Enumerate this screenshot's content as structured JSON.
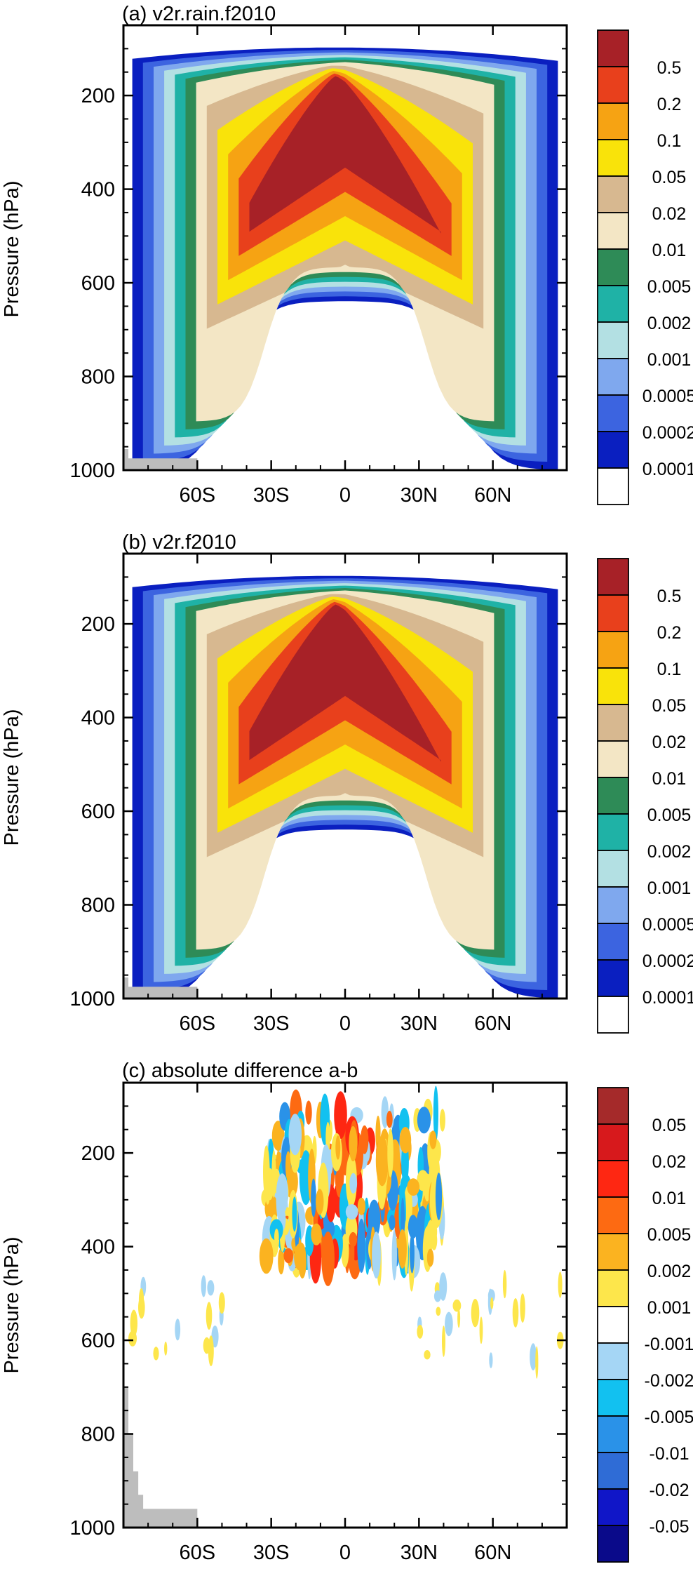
{
  "chart_data": [
    {
      "type": "heatmap",
      "title": "(a) v2r.rain.f2010",
      "xlabel": "",
      "ylabel": "Pressure (hPa)",
      "x_ticks": [
        "60S",
        "30S",
        "0",
        "30N",
        "60N"
      ],
      "x_tick_values": [
        -60,
        -30,
        0,
        30,
        60
      ],
      "xlim": [
        -90,
        90
      ],
      "y_ticks": [
        "200",
        "400",
        "600",
        "800",
        "1000"
      ],
      "y_tick_values": [
        200,
        400,
        600,
        800,
        1000
      ],
      "ylim": [
        1000,
        50
      ],
      "levels": [
        "0.5",
        "0.2",
        "0.1",
        "0.05",
        "0.02",
        "0.01",
        "0.005",
        "0.002",
        "0.001",
        "0.0005",
        "0.0002",
        "0.0001"
      ],
      "colors": [
        "#a72127",
        "#e8401c",
        "#f6a313",
        "#f9e30a",
        "#d7b890",
        "#f3e6c5",
        "#2e8b57",
        "#1fb2a6",
        "#b3e0e3",
        "#7fa8ee",
        "#3c64e0",
        "#0a1fc0",
        "#ffffff"
      ],
      "legend": "right",
      "shape": "positive"
    },
    {
      "type": "heatmap",
      "title": "(b) v2r.f2010",
      "xlabel": "",
      "ylabel": "Pressure (hPa)",
      "x_ticks": [
        "60S",
        "30S",
        "0",
        "30N",
        "60N"
      ],
      "x_tick_values": [
        -60,
        -30,
        0,
        30,
        60
      ],
      "xlim": [
        -90,
        90
      ],
      "y_ticks": [
        "200",
        "400",
        "600",
        "800",
        "1000"
      ],
      "y_tick_values": [
        200,
        400,
        600,
        800,
        1000
      ],
      "ylim": [
        1000,
        50
      ],
      "levels": [
        "0.5",
        "0.2",
        "0.1",
        "0.05",
        "0.02",
        "0.01",
        "0.005",
        "0.002",
        "0.001",
        "0.0005",
        "0.0002",
        "0.0001"
      ],
      "colors": [
        "#a72127",
        "#e8401c",
        "#f6a313",
        "#f9e30a",
        "#d7b890",
        "#f3e6c5",
        "#2e8b57",
        "#1fb2a6",
        "#b3e0e3",
        "#7fa8ee",
        "#3c64e0",
        "#0a1fc0",
        "#ffffff"
      ],
      "legend": "right",
      "shape": "positive"
    },
    {
      "type": "heatmap",
      "title": "(c) absolute difference a-b",
      "xlabel": "",
      "ylabel": "Pressure (hPa)",
      "x_ticks": [
        "60S",
        "30S",
        "0",
        "30N",
        "60N"
      ],
      "x_tick_values": [
        -60,
        -30,
        0,
        30,
        60
      ],
      "xlim": [
        -90,
        90
      ],
      "y_ticks": [
        "200",
        "400",
        "600",
        "800",
        "1000"
      ],
      "y_tick_values": [
        200,
        400,
        600,
        800,
        1000
      ],
      "ylim": [
        1000,
        50
      ],
      "levels": [
        "0.05",
        "0.02",
        "0.01",
        "0.005",
        "0.002",
        "0.001",
        "-0.001",
        "-0.002",
        "-0.005",
        "-0.01",
        "-0.02",
        "-0.05"
      ],
      "colors": [
        "#a52a2a",
        "#d7191c",
        "#fe2712",
        "#fd6a12",
        "#fbb320",
        "#fde64b",
        "#ffffff",
        "#a5d6f5",
        "#12c1f0",
        "#2a92e8",
        "#2f6cd6",
        "#1016c8",
        "#0a0a8a"
      ],
      "legend": "right",
      "shape": "difference"
    }
  ]
}
